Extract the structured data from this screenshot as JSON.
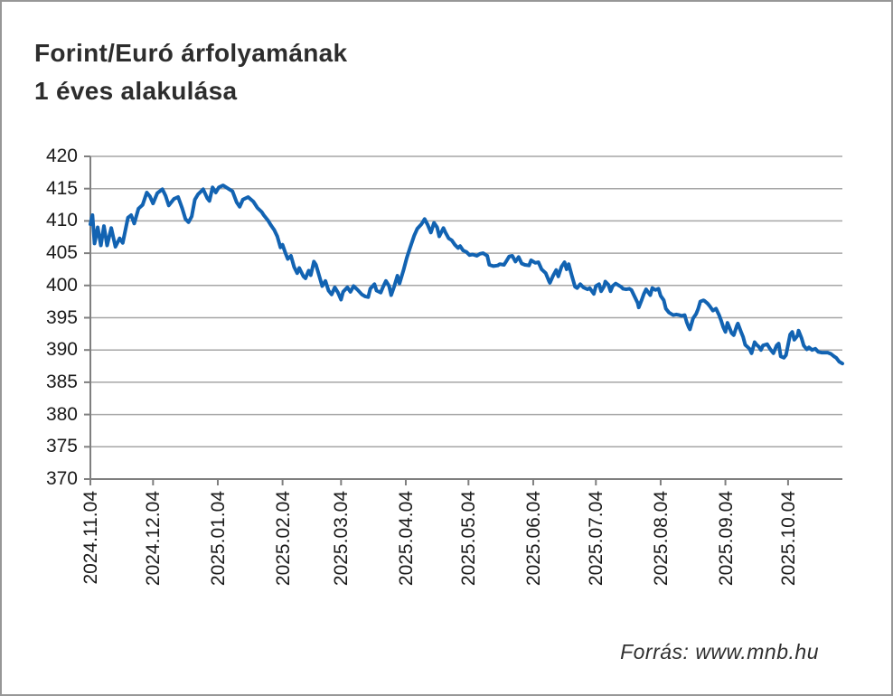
{
  "header": {
    "title_line1": "Forint/Euró árfolyamának",
    "title_line2": "1 éves alakulása"
  },
  "footer": {
    "source": "Forrás: www.mnb.hu"
  },
  "colors": {
    "line": "#1263b2",
    "grid": "#a6a6a6",
    "axis": "#7f7f7f",
    "tick_text": "#1a1a1a"
  },
  "chart_data": {
    "type": "line",
    "title": "Forint/Euró árfolyamának 1 éves alakulása",
    "xlabel": "",
    "ylabel": "",
    "grid": true,
    "legend_position": "none",
    "ylim": [
      370,
      420
    ],
    "y_ticks": [
      420,
      415,
      410,
      405,
      400,
      395,
      390,
      385,
      380,
      375,
      370
    ],
    "x_domain_days": [
      0,
      360
    ],
    "x_tick_days": [
      0,
      30,
      61,
      92,
      120,
      151,
      181,
      212,
      242,
      273,
      304,
      334
    ],
    "x_tick_labels": [
      "2024.11.04",
      "2024.12.04",
      "2025.01.04",
      "2025.02.04",
      "2025.03.04",
      "2025.04.04",
      "2025.05.04",
      "2025.06.04",
      "2025.07.04",
      "2025.08.04",
      "2025.09.04",
      "2025.10.04"
    ],
    "series": [
      {
        "name": "Forint/Euró árfolyam",
        "points": [
          [
            0,
            409.5
          ],
          [
            1,
            410.9
          ],
          [
            2,
            406.5
          ],
          [
            3.5,
            409.0
          ],
          [
            5,
            406.2
          ],
          [
            6.5,
            409.2
          ],
          [
            8,
            406.2
          ],
          [
            10,
            408.9
          ],
          [
            12,
            406.0
          ],
          [
            14,
            407.3
          ],
          [
            15.5,
            406.6
          ],
          [
            18,
            410.5
          ],
          [
            19.5,
            410.9
          ],
          [
            21,
            409.6
          ],
          [
            23,
            411.9
          ],
          [
            25,
            412.5
          ],
          [
            27,
            414.4
          ],
          [
            28.5,
            413.8
          ],
          [
            30,
            412.7
          ],
          [
            32,
            414.3
          ],
          [
            34.5,
            414.9
          ],
          [
            36,
            413.9
          ],
          [
            37.5,
            412.4
          ],
          [
            40,
            413.4
          ],
          [
            42,
            413.7
          ],
          [
            44,
            411.9
          ],
          [
            45.5,
            410.3
          ],
          [
            47,
            409.8
          ],
          [
            48.5,
            410.7
          ],
          [
            50,
            413.3
          ],
          [
            51.5,
            414.1
          ],
          [
            54,
            414.9
          ],
          [
            56,
            413.5
          ],
          [
            57,
            413.1
          ],
          [
            58.5,
            415.2
          ],
          [
            60,
            414.4
          ],
          [
            61.5,
            415.2
          ],
          [
            63.5,
            415.5
          ],
          [
            66,
            415.0
          ],
          [
            68,
            414.6
          ],
          [
            70,
            412.9
          ],
          [
            71.5,
            412.2
          ],
          [
            73,
            413.3
          ],
          [
            75.5,
            413.7
          ],
          [
            78,
            413.0
          ],
          [
            80,
            412.0
          ],
          [
            82,
            411.4
          ],
          [
            83,
            410.9
          ],
          [
            85,
            410.1
          ],
          [
            86.5,
            409.3
          ],
          [
            88,
            408.6
          ],
          [
            89.5,
            407.6
          ],
          [
            91,
            405.9
          ],
          [
            92,
            406.3
          ],
          [
            93.5,
            404.9
          ],
          [
            94.5,
            404.1
          ],
          [
            96,
            404.6
          ],
          [
            97.5,
            402.9
          ],
          [
            99,
            401.9
          ],
          [
            100,
            402.7
          ],
          [
            102,
            401.4
          ],
          [
            103,
            401.1
          ],
          [
            104.5,
            402.3
          ],
          [
            105.5,
            401.6
          ],
          [
            107,
            403.7
          ],
          [
            108,
            403.2
          ],
          [
            110,
            401.0
          ],
          [
            111,
            399.9
          ],
          [
            112.5,
            400.7
          ],
          [
            114,
            399.2
          ],
          [
            115.5,
            398.6
          ],
          [
            117,
            399.7
          ],
          [
            118.5,
            398.9
          ],
          [
            120,
            397.8
          ],
          [
            121,
            399.0
          ],
          [
            123,
            399.7
          ],
          [
            124.5,
            399.0
          ],
          [
            126,
            399.9
          ],
          [
            128,
            399.3
          ],
          [
            130,
            398.6
          ],
          [
            131.5,
            398.3
          ],
          [
            133,
            398.2
          ],
          [
            134,
            399.5
          ],
          [
            136,
            400.2
          ],
          [
            137,
            399.2
          ],
          [
            139,
            398.9
          ],
          [
            140,
            399.7
          ],
          [
            141.5,
            400.7
          ],
          [
            143,
            399.9
          ],
          [
            144,
            398.5
          ],
          [
            145.5,
            399.9
          ],
          [
            147,
            401.5
          ],
          [
            148,
            400.3
          ],
          [
            150,
            402.5
          ],
          [
            151.5,
            404.3
          ],
          [
            153,
            405.8
          ],
          [
            155,
            407.7
          ],
          [
            156.5,
            408.8
          ],
          [
            158.5,
            409.5
          ],
          [
            160,
            410.3
          ],
          [
            161.5,
            409.4
          ],
          [
            163,
            408.2
          ],
          [
            164.5,
            409.7
          ],
          [
            166,
            409.0
          ],
          [
            167,
            407.6
          ],
          [
            169,
            408.9
          ],
          [
            170,
            408.2
          ],
          [
            171.5,
            407.3
          ],
          [
            173,
            407.0
          ],
          [
            174.5,
            406.3
          ],
          [
            176,
            405.8
          ],
          [
            177,
            406.1
          ],
          [
            178.5,
            405.4
          ],
          [
            180,
            405.2
          ],
          [
            181.5,
            404.7
          ],
          [
            183,
            404.8
          ],
          [
            185,
            404.6
          ],
          [
            186.5,
            404.9
          ],
          [
            188,
            405.0
          ],
          [
            190,
            404.6
          ],
          [
            191,
            403.2
          ],
          [
            193,
            403.0
          ],
          [
            195,
            403.1
          ],
          [
            196,
            403.3
          ],
          [
            198,
            403.2
          ],
          [
            199,
            403.7
          ],
          [
            200.5,
            404.5
          ],
          [
            202,
            404.6
          ],
          [
            203.5,
            403.7
          ],
          [
            205,
            404.4
          ],
          [
            206.5,
            403.4
          ],
          [
            208,
            403.2
          ],
          [
            210,
            403.1
          ],
          [
            211,
            403.9
          ],
          [
            213,
            403.5
          ],
          [
            214.5,
            403.6
          ],
          [
            216,
            402.5
          ],
          [
            218,
            401.9
          ],
          [
            219.5,
            400.7
          ],
          [
            220,
            400.4
          ],
          [
            221.5,
            401.5
          ],
          [
            223,
            402.4
          ],
          [
            224,
            401.4
          ],
          [
            225.5,
            402.9
          ],
          [
            227,
            403.6
          ],
          [
            228,
            402.5
          ],
          [
            229,
            403.3
          ],
          [
            230.5,
            401.5
          ],
          [
            232,
            399.8
          ],
          [
            233,
            399.6
          ],
          [
            234.5,
            400.2
          ],
          [
            236,
            399.7
          ],
          [
            238,
            399.4
          ],
          [
            239,
            399.6
          ],
          [
            241,
            398.7
          ],
          [
            242,
            399.9
          ],
          [
            243.5,
            400.2
          ],
          [
            244.5,
            399.1
          ],
          [
            246,
            399.9
          ],
          [
            246.5,
            400.6
          ],
          [
            248,
            400.1
          ],
          [
            249,
            399.1
          ],
          [
            250,
            399.9
          ],
          [
            251.5,
            400.3
          ],
          [
            253,
            400.0
          ],
          [
            254,
            399.8
          ],
          [
            255,
            399.5
          ],
          [
            256.5,
            399.4
          ],
          [
            258,
            399.5
          ],
          [
            259,
            399.3
          ],
          [
            260.5,
            398.3
          ],
          [
            262,
            397.3
          ],
          [
            262.5,
            396.6
          ],
          [
            264,
            397.8
          ],
          [
            265,
            398.7
          ],
          [
            266,
            399.4
          ],
          [
            268,
            398.5
          ],
          [
            269,
            399.6
          ],
          [
            270.5,
            399.3
          ],
          [
            272,
            399.5
          ],
          [
            273,
            398.4
          ],
          [
            274.5,
            397.7
          ],
          [
            275.5,
            396.4
          ],
          [
            277,
            395.8
          ],
          [
            278,
            395.6
          ],
          [
            279,
            395.4
          ],
          [
            280.5,
            395.5
          ],
          [
            282,
            395.4
          ],
          [
            283,
            395.3
          ],
          [
            284.5,
            395.4
          ],
          [
            285.5,
            394.3
          ],
          [
            286.5,
            393.5
          ],
          [
            287,
            393.2
          ],
          [
            288.5,
            394.9
          ],
          [
            290,
            395.6
          ],
          [
            291,
            396.4
          ],
          [
            292,
            397.5
          ],
          [
            293.5,
            397.7
          ],
          [
            294,
            397.6
          ],
          [
            295.5,
            397.2
          ],
          [
            296.5,
            396.8
          ],
          [
            298,
            396.1
          ],
          [
            299.5,
            396.4
          ],
          [
            301,
            395.4
          ],
          [
            302,
            394.5
          ],
          [
            303,
            393.5
          ],
          [
            304,
            392.8
          ],
          [
            305,
            394.2
          ],
          [
            306,
            393.4
          ],
          [
            307,
            392.6
          ],
          [
            308,
            392.3
          ],
          [
            309.5,
            393.8
          ],
          [
            310,
            394.1
          ],
          [
            311.5,
            392.8
          ],
          [
            312.5,
            392.0
          ],
          [
            313.5,
            390.8
          ],
          [
            315.5,
            390.2
          ],
          [
            316.5,
            389.5
          ],
          [
            318,
            391.2
          ],
          [
            319,
            390.8
          ],
          [
            320,
            390.5
          ],
          [
            321,
            390.0
          ],
          [
            322,
            390.7
          ],
          [
            324,
            390.9
          ],
          [
            325.5,
            390.1
          ],
          [
            327,
            389.5
          ],
          [
            328.5,
            390.7
          ],
          [
            329.5,
            391.0
          ],
          [
            330.5,
            389.0
          ],
          [
            332,
            388.8
          ],
          [
            333,
            389.2
          ],
          [
            335,
            392.4
          ],
          [
            336,
            392.8
          ],
          [
            337,
            391.6
          ],
          [
            338.5,
            392.2
          ],
          [
            339,
            393.0
          ],
          [
            340.5,
            391.8
          ],
          [
            341.5,
            390.7
          ],
          [
            343,
            390.1
          ],
          [
            344,
            390.4
          ],
          [
            345.5,
            390.0
          ],
          [
            347,
            390.2
          ],
          [
            348.5,
            389.7
          ],
          [
            350,
            389.6
          ],
          [
            351.5,
            389.6
          ],
          [
            353,
            389.6
          ],
          [
            354.5,
            389.4
          ],
          [
            356,
            389.0
          ],
          [
            357,
            388.8
          ],
          [
            358.5,
            388.2
          ],
          [
            360,
            387.9
          ]
        ]
      }
    ]
  }
}
